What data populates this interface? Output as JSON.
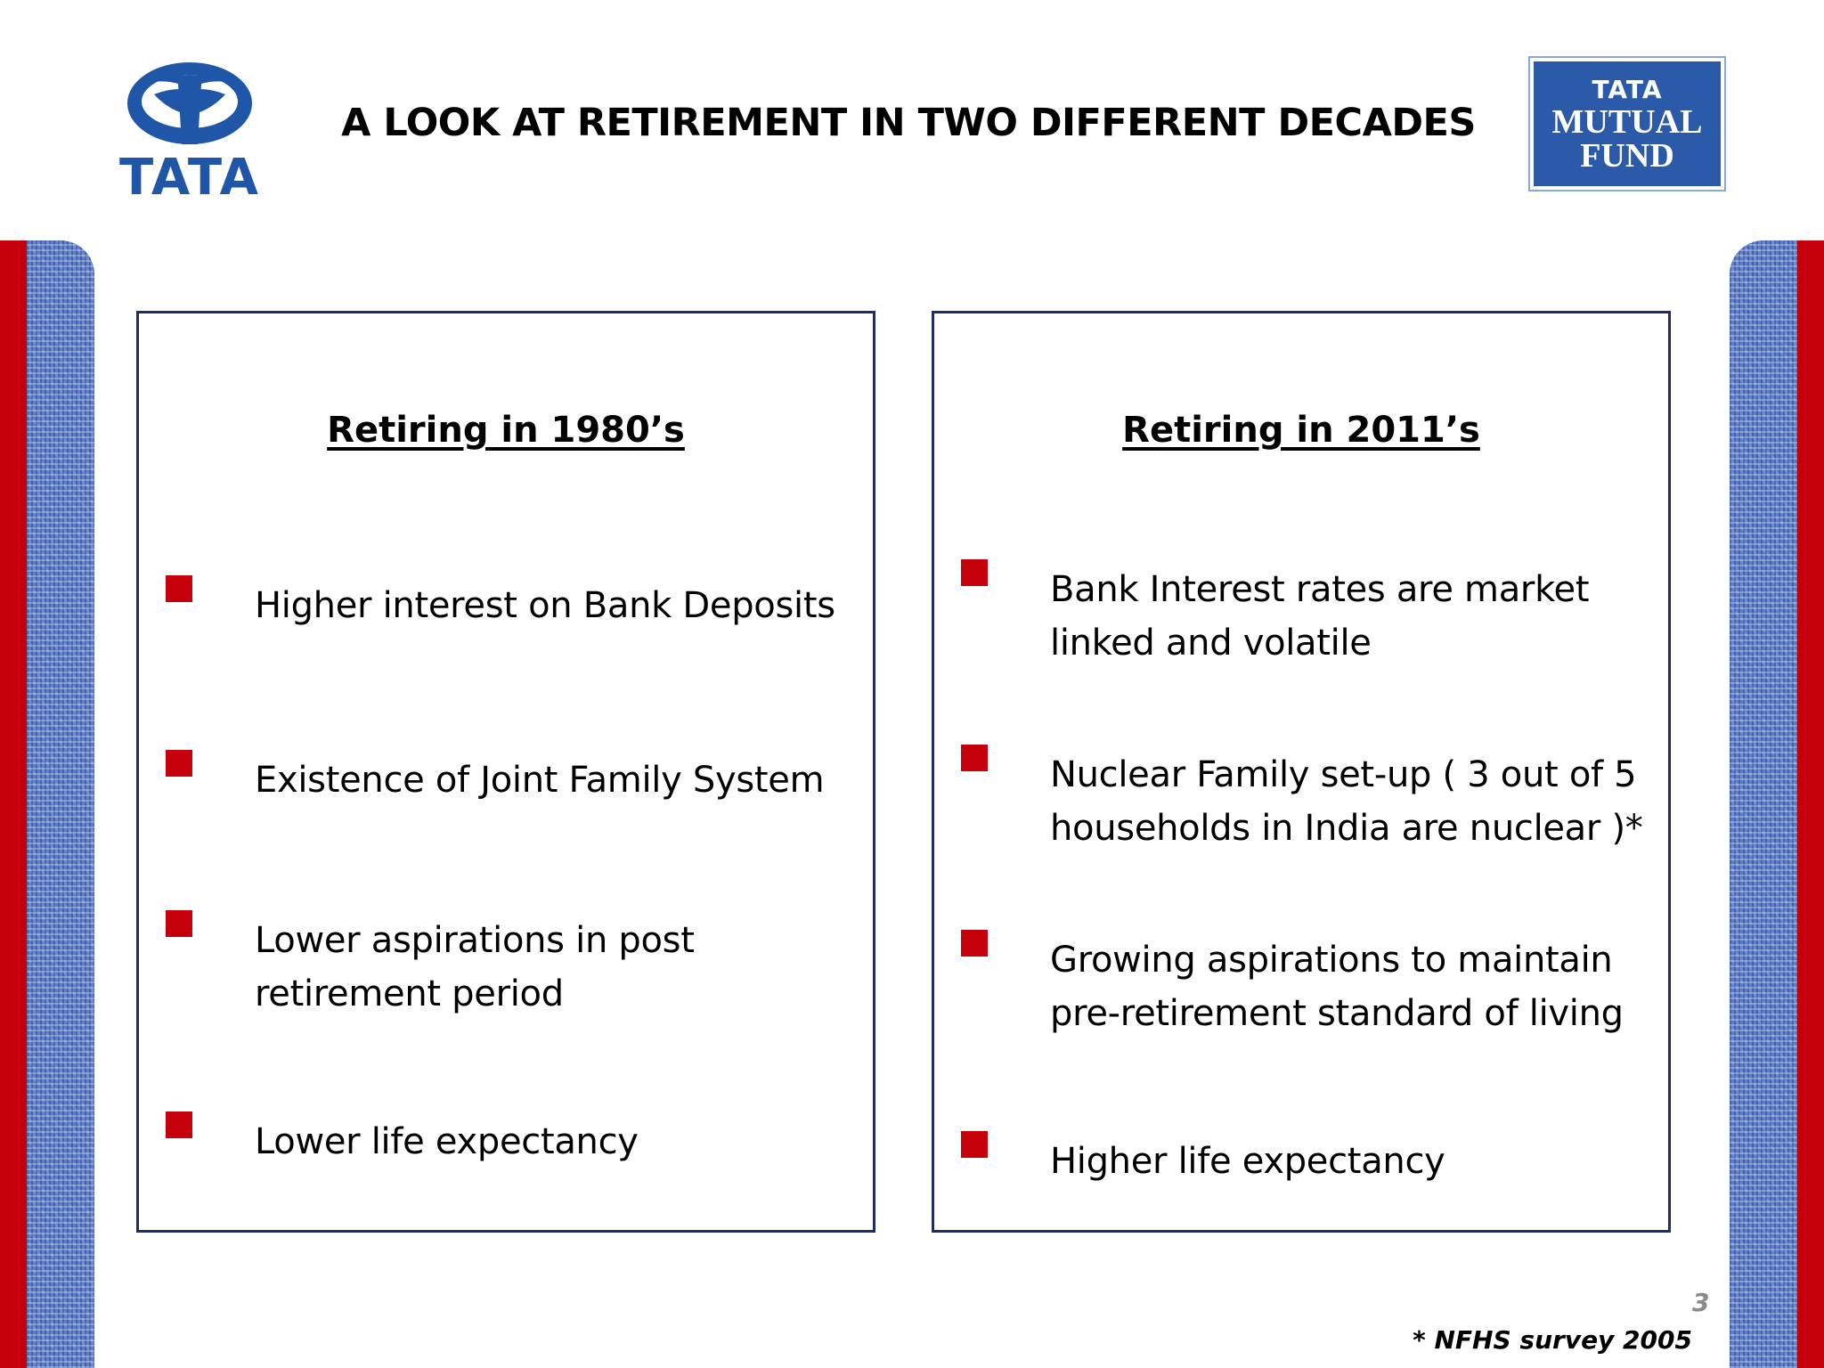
{
  "slide": {
    "title": "A LOOK AT RETIREMENT IN TWO DIFFERENT DECADES",
    "page_number": "3",
    "footnote": "* NFHS survey 2005"
  },
  "logos": {
    "tata_wordmark": "TATA",
    "mutual_fund": {
      "line1": "TATA",
      "line2": "MUTUAL",
      "line3": "FUND"
    },
    "brand_color": "#1f56a8"
  },
  "panels": {
    "left": {
      "heading": "Retiring in 1980’s",
      "items": [
        "Higher interest on Bank Deposits",
        "Existence of Joint Family System",
        "Lower aspirations in post retirement period",
        "Lower life expectancy"
      ]
    },
    "right": {
      "heading": "Retiring in 2011’s",
      "items": [
        "Bank Interest rates are market linked and volatile",
        "Nuclear Family set-up ( 3 out of 5 households in India are nuclear )*",
        "Growing aspirations to maintain pre-retirement standard of living",
        "Higher life expectancy"
      ]
    }
  },
  "colors": {
    "bullet": "#c4000a",
    "panel_border": "#1e2d64",
    "side_red": "#c4000a",
    "side_blue": "#5d7fc9"
  }
}
